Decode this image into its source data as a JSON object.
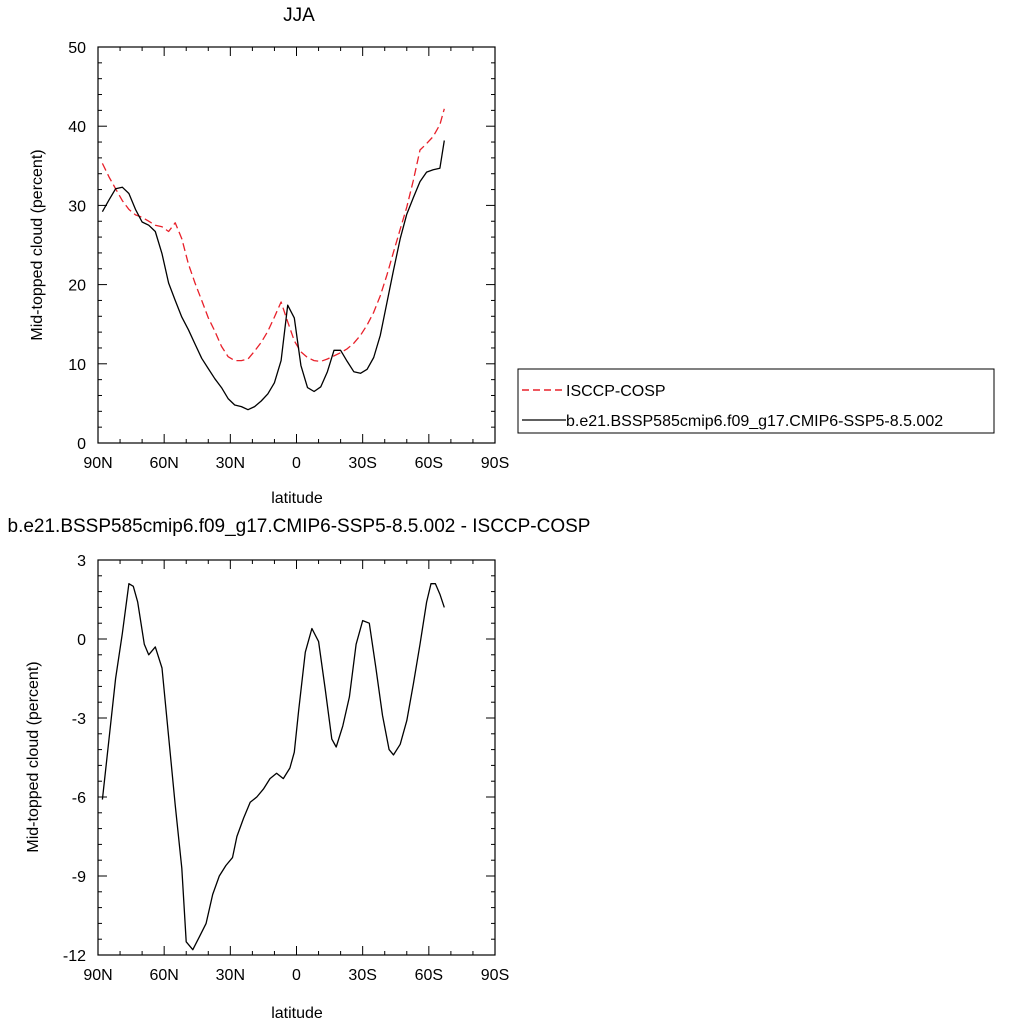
{
  "chart_data": [
    {
      "type": "line",
      "title": "JJA",
      "xlabel": "latitude",
      "ylabel": "Mid-topped cloud (percent)",
      "xlim": [
        -90,
        90
      ],
      "ylim": [
        0,
        50
      ],
      "x_ticks": [
        -90,
        -60,
        -30,
        0,
        30,
        60,
        90
      ],
      "x_tick_labels": [
        "90N",
        "60N",
        "30N",
        "0",
        "30S",
        "60S",
        "90S"
      ],
      "y_ticks": [
        0,
        10,
        20,
        30,
        40,
        50
      ],
      "y_tick_labels": [
        "0",
        "10",
        "20",
        "30",
        "40",
        "50"
      ],
      "grid": false,
      "legend": {
        "placement": "right",
        "entries": [
          "ISCCP-COSP",
          "b.e21.BSSP585cmip6.f09_g17.CMIP6-SSP5-8.5.002"
        ]
      },
      "series": [
        {
          "name": "ISCCP-COSP",
          "color": "#e8202a",
          "dash": "dashed",
          "x": [
            -88,
            -85,
            -82,
            -79,
            -76,
            -73,
            -70,
            -67,
            -64,
            -61,
            -58,
            -55,
            -52,
            -49,
            -46,
            -43,
            -40,
            -37,
            -34,
            -31,
            -28,
            -25,
            -22,
            -19,
            -16,
            -13,
            -10,
            -7,
            -4,
            -1,
            2,
            5,
            8,
            11,
            14,
            17,
            20,
            23,
            26,
            29,
            32,
            35,
            38,
            41,
            44,
            47,
            50,
            53,
            56,
            59,
            62,
            65,
            67
          ],
          "y": [
            35.3,
            33.6,
            32.1,
            30.6,
            29.5,
            28.8,
            28.5,
            28.0,
            27.5,
            27.3,
            26.7,
            27.8,
            25.8,
            22.6,
            20.2,
            18.0,
            15.8,
            14.1,
            12.2,
            10.9,
            10.4,
            10.4,
            10.6,
            11.6,
            12.7,
            14.1,
            15.9,
            17.8,
            15.3,
            12.9,
            11.5,
            10.8,
            10.4,
            10.3,
            10.6,
            11.0,
            11.4,
            11.9,
            12.6,
            13.6,
            14.9,
            16.5,
            18.6,
            21.2,
            24.1,
            27.0,
            29.8,
            33.2,
            37.0,
            37.8,
            38.7,
            40.2,
            42.2
          ]
        },
        {
          "name": "b.e21.BSSP585cmip6.f09_g17.CMIP6-SSP5-8.5.002",
          "color": "#000000",
          "dash": "solid",
          "x": [
            -88,
            -85,
            -82,
            -79,
            -76,
            -73,
            -70,
            -67,
            -64,
            -61,
            -58,
            -55,
            -52,
            -49,
            -46,
            -43,
            -40,
            -37,
            -34,
            -31,
            -28,
            -25,
            -22,
            -19,
            -16,
            -13,
            -10,
            -7,
            -4,
            -1,
            2,
            5,
            8,
            11,
            14,
            17,
            20,
            23,
            26,
            29,
            32,
            35,
            38,
            41,
            44,
            47,
            50,
            53,
            56,
            59,
            62,
            65,
            67
          ],
          "y": [
            29.2,
            30.7,
            32.1,
            32.3,
            31.5,
            29.5,
            27.9,
            27.5,
            26.7,
            23.9,
            20.2,
            18.0,
            15.9,
            14.3,
            12.5,
            10.7,
            9.4,
            8.1,
            7.0,
            5.6,
            4.8,
            4.6,
            4.2,
            4.6,
            5.3,
            6.2,
            7.6,
            10.4,
            17.4,
            15.8,
            9.8,
            7.0,
            6.5,
            7.1,
            9.0,
            11.7,
            11.7,
            10.3,
            9.0,
            8.8,
            9.3,
            10.8,
            13.6,
            17.7,
            21.8,
            25.8,
            28.9,
            31.0,
            33.0,
            34.2,
            34.5,
            34.7,
            38.2
          ]
        }
      ]
    },
    {
      "type": "line",
      "title": "b.e21.BSSP585cmip6.f09_g17.CMIP6-SSP5-8.5.002 - ISCCP-COSP",
      "xlabel": "latitude",
      "ylabel": "Mid-topped cloud (percent)",
      "xlim": [
        -90,
        90
      ],
      "ylim": [
        -12,
        3
      ],
      "x_ticks": [
        -90,
        -60,
        -30,
        0,
        30,
        60,
        90
      ],
      "x_tick_labels": [
        "90N",
        "60N",
        "30N",
        "0",
        "30S",
        "60S",
        "90S"
      ],
      "y_ticks": [
        -12,
        -9,
        -6,
        -3,
        0,
        3
      ],
      "y_tick_labels": [
        "-12",
        "-9",
        "-6",
        "-3",
        "0",
        "3"
      ],
      "grid": false,
      "series": [
        {
          "color": "#000000",
          "dash": "solid",
          "x": [
            -88,
            -85,
            -82,
            -79,
            -76,
            -74,
            -72,
            -69,
            -67,
            -64,
            -61,
            -58,
            -55,
            -52,
            -50,
            -47,
            -44,
            -41,
            -38,
            -35,
            -32,
            -29,
            -27,
            -24,
            -21,
            -18,
            -15,
            -12,
            -9,
            -6,
            -3,
            -1,
            1,
            4,
            7,
            10,
            13,
            16,
            18,
            21,
            24,
            27,
            30,
            33,
            36,
            39,
            42,
            44,
            47,
            50,
            53,
            56,
            59,
            61,
            63,
            65,
            67
          ],
          "y": [
            -6.1,
            -3.8,
            -1.5,
            0.2,
            2.1,
            2.0,
            1.4,
            -0.2,
            -0.6,
            -0.3,
            -1.1,
            -3.7,
            -6.3,
            -8.7,
            -11.5,
            -11.8,
            -11.3,
            -10.8,
            -9.7,
            -9.0,
            -8.6,
            -8.3,
            -7.5,
            -6.8,
            -6.2,
            -6.0,
            -5.7,
            -5.3,
            -5.1,
            -5.3,
            -4.9,
            -4.3,
            -2.7,
            -0.5,
            0.4,
            -0.1,
            -1.9,
            -3.8,
            -4.1,
            -3.3,
            -2.2,
            -0.2,
            0.7,
            0.6,
            -1.1,
            -2.9,
            -4.2,
            -4.4,
            -4.0,
            -3.1,
            -1.7,
            -0.2,
            1.4,
            2.1,
            2.1,
            1.7,
            1.2
          ]
        }
      ]
    }
  ]
}
